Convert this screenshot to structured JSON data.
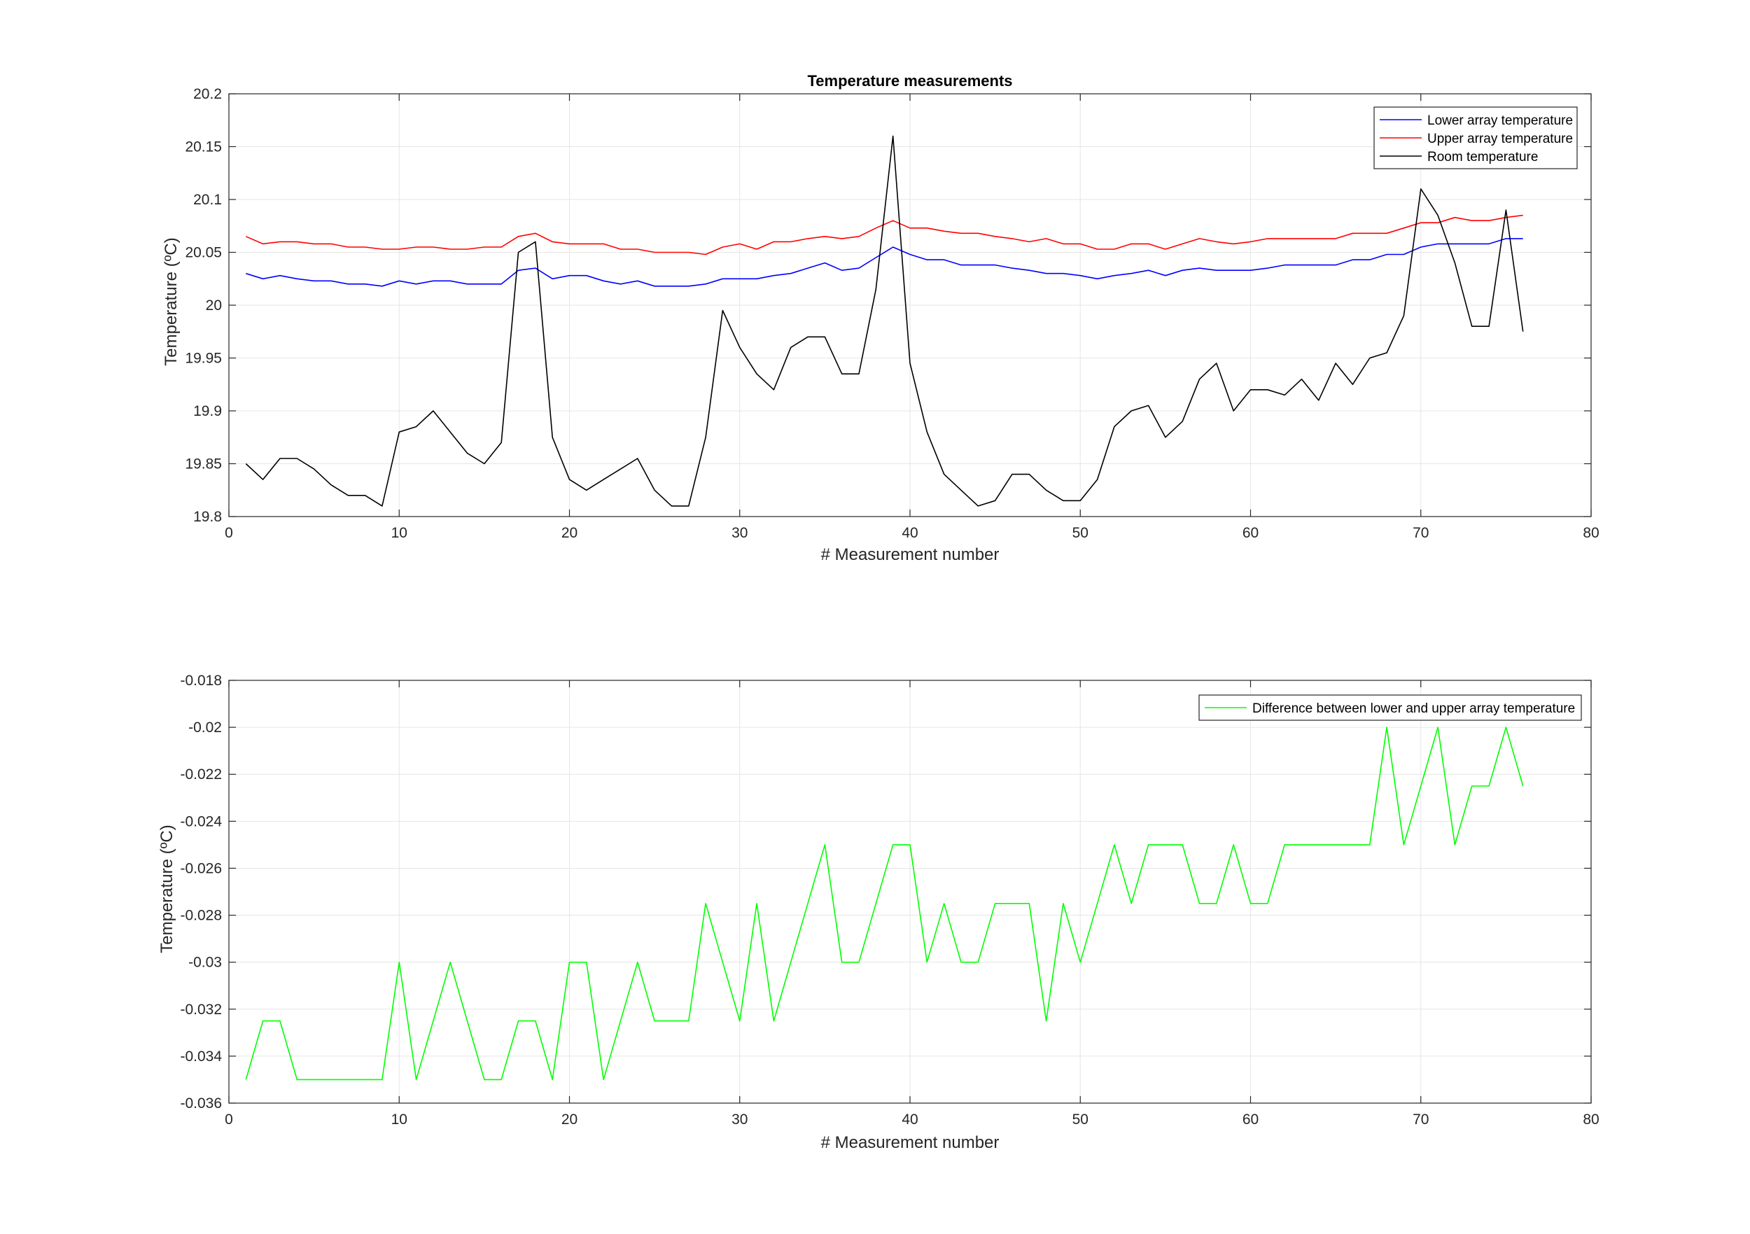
{
  "chart_data": [
    {
      "type": "line",
      "title": "Temperature measurements",
      "xlabel": "# Measurement number",
      "ylabel": "Temperature (ºC)",
      "xlim": [
        0,
        80
      ],
      "ylim": [
        19.8,
        20.2
      ],
      "xticks": [
        "0",
        "10",
        "20",
        "30",
        "40",
        "50",
        "60",
        "70",
        "80"
      ],
      "yticks": [
        "19.8",
        "19.85",
        "19.9",
        "19.95",
        "20",
        "20.05",
        "20.1",
        "20.15",
        "20.2"
      ],
      "grid": true,
      "legend_position": "top-right",
      "series": [
        {
          "name": "Lower array temperature",
          "color": "#0000ff",
          "values": [
            20.03,
            20.025,
            20.028,
            20.025,
            20.023,
            20.023,
            20.02,
            20.02,
            20.018,
            20.023,
            20.02,
            20.023,
            20.023,
            20.02,
            20.02,
            20.02,
            20.033,
            20.035,
            20.025,
            20.028,
            20.028,
            20.023,
            20.02,
            20.023,
            20.018,
            20.018,
            20.018,
            20.02,
            20.025,
            20.025,
            20.025,
            20.028,
            20.03,
            20.035,
            20.04,
            20.033,
            20.035,
            20.045,
            20.055,
            20.048,
            20.043,
            20.043,
            20.038,
            20.038,
            20.038,
            20.035,
            20.033,
            20.03,
            20.03,
            20.028,
            20.025,
            20.028,
            20.03,
            20.033,
            20.028,
            20.033,
            20.035,
            20.033,
            20.033,
            20.033,
            20.035,
            20.038,
            20.038,
            20.038,
            20.038,
            20.043,
            20.043,
            20.048,
            20.048,
            20.055,
            20.058,
            20.058,
            20.058,
            20.058,
            20.063,
            20.063
          ]
        },
        {
          "name": "Upper array temperature",
          "color": "#ff0000",
          "values": [
            20.065,
            20.058,
            20.06,
            20.06,
            20.058,
            20.058,
            20.055,
            20.055,
            20.053,
            20.053,
            20.055,
            20.055,
            20.053,
            20.053,
            20.055,
            20.055,
            20.065,
            20.068,
            20.06,
            20.058,
            20.058,
            20.058,
            20.053,
            20.053,
            20.05,
            20.05,
            20.05,
            20.048,
            20.055,
            20.058,
            20.053,
            20.06,
            20.06,
            20.063,
            20.065,
            20.063,
            20.065,
            20.073,
            20.08,
            20.073,
            20.073,
            20.07,
            20.068,
            20.068,
            20.065,
            20.063,
            20.06,
            20.063,
            20.058,
            20.058,
            20.053,
            20.053,
            20.058,
            20.058,
            20.053,
            20.058,
            20.063,
            20.06,
            20.058,
            20.06,
            20.063,
            20.063,
            20.063,
            20.063,
            20.063,
            20.068,
            20.068,
            20.068,
            20.073,
            20.078,
            20.078,
            20.083,
            20.08,
            20.08,
            20.083,
            20.085
          ]
        },
        {
          "name": "Room temperature",
          "color": "#000000",
          "values": [
            19.85,
            19.835,
            19.855,
            19.855,
            19.845,
            19.83,
            19.82,
            19.82,
            19.81,
            19.88,
            19.885,
            19.9,
            19.88,
            19.86,
            19.85,
            19.87,
            20.05,
            20.06,
            19.875,
            19.835,
            19.825,
            19.835,
            19.845,
            19.855,
            19.825,
            19.81,
            19.81,
            19.875,
            19.995,
            19.96,
            19.935,
            19.92,
            19.96,
            19.97,
            19.97,
            19.935,
            19.935,
            20.015,
            20.16,
            19.945,
            19.88,
            19.84,
            19.825,
            19.81,
            19.815,
            19.84,
            19.84,
            19.825,
            19.815,
            19.815,
            19.835,
            19.885,
            19.9,
            19.905,
            19.875,
            19.89,
            19.93,
            19.945,
            19.9,
            19.92,
            19.92,
            19.915,
            19.93,
            19.91,
            19.945,
            19.925,
            19.95,
            19.955,
            19.99,
            20.11,
            20.085,
            20.04,
            19.98,
            19.98,
            20.09,
            19.975
          ]
        }
      ]
    },
    {
      "type": "line",
      "title": "",
      "xlabel": "# Measurement number",
      "ylabel": "Temperature (ºC)",
      "xlim": [
        0,
        80
      ],
      "ylim": [
        -0.036,
        -0.018
      ],
      "xticks": [
        "0",
        "10",
        "20",
        "30",
        "40",
        "50",
        "60",
        "70",
        "80"
      ],
      "yticks": [
        "-0.036",
        "-0.034",
        "-0.032",
        "-0.03",
        "-0.028",
        "-0.026",
        "-0.024",
        "-0.022",
        "-0.02",
        "-0.018"
      ],
      "grid": true,
      "legend_position": "top-right",
      "series": [
        {
          "name": "Difference between lower and upper array temperature",
          "color": "#00ff00",
          "values": [
            -0.035,
            -0.0325,
            -0.0325,
            -0.035,
            -0.035,
            -0.035,
            -0.035,
            -0.035,
            -0.035,
            -0.03,
            -0.035,
            -0.0325,
            -0.03,
            -0.0325,
            -0.035,
            -0.035,
            -0.0325,
            -0.0325,
            -0.035,
            -0.03,
            -0.03,
            -0.035,
            -0.0325,
            -0.03,
            -0.0325,
            -0.0325,
            -0.0325,
            -0.0275,
            -0.03,
            -0.0325,
            -0.0275,
            -0.0325,
            -0.03,
            -0.0275,
            -0.025,
            -0.03,
            -0.03,
            -0.0275,
            -0.025,
            -0.025,
            -0.03,
            -0.0275,
            -0.03,
            -0.03,
            -0.0275,
            -0.0275,
            -0.0275,
            -0.0325,
            -0.0275,
            -0.03,
            -0.0275,
            -0.025,
            -0.0275,
            -0.025,
            -0.025,
            -0.025,
            -0.0275,
            -0.0275,
            -0.025,
            -0.0275,
            -0.0275,
            -0.025,
            -0.025,
            -0.025,
            -0.025,
            -0.025,
            -0.025,
            -0.02,
            -0.025,
            -0.0225,
            -0.02,
            -0.025,
            -0.0225,
            -0.0225,
            -0.02,
            -0.0225
          ]
        }
      ]
    }
  ]
}
